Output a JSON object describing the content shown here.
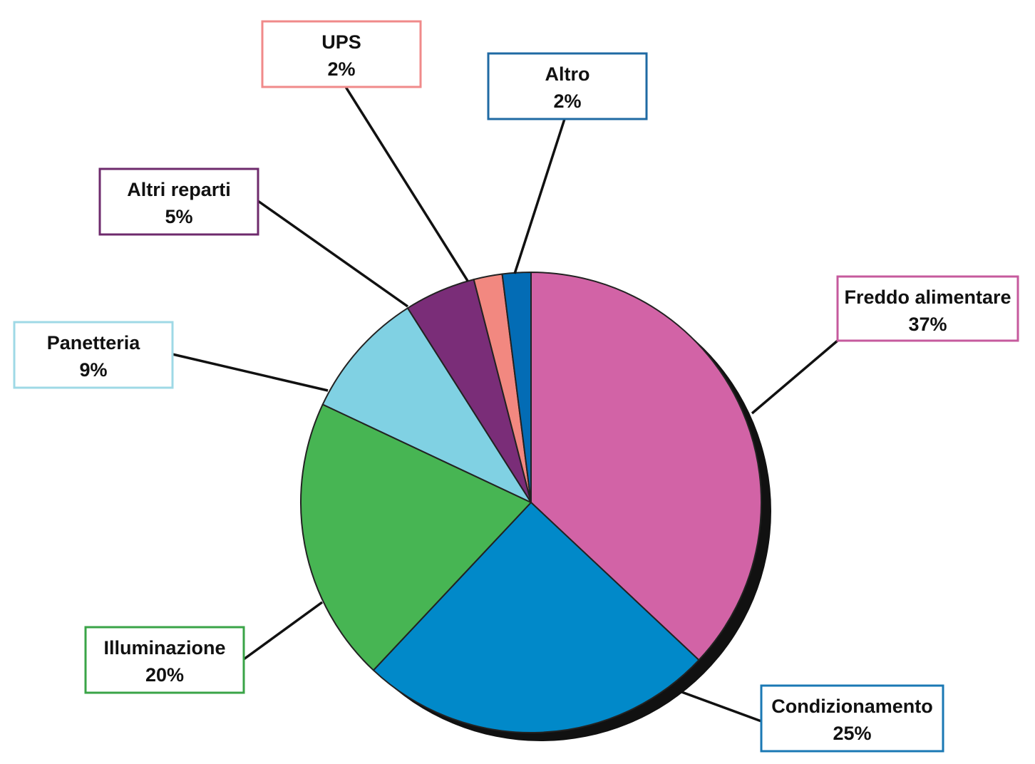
{
  "chart_data": {
    "type": "pie",
    "title": "",
    "slices": [
      {
        "label": "Freddo alimentare",
        "value": 37,
        "value_label": "37%",
        "color": "#d263a6",
        "border_color": "#c65a9d"
      },
      {
        "label": "Condizionamento",
        "value": 25,
        "value_label": "25%",
        "color": "#0189c9",
        "border_color": "#1a78b4"
      },
      {
        "label": "Illuminazione",
        "value": 20,
        "value_label": "20%",
        "color": "#47b553",
        "border_color": "#3aa447"
      },
      {
        "label": "Panetteria",
        "value": 9,
        "value_label": "9%",
        "color": "#80d1e3",
        "border_color": "#9fd9e6"
      },
      {
        "label": "Altri reparti",
        "value": 5,
        "value_label": "5%",
        "color": "#7a2d78",
        "border_color": "#6e2a6c"
      },
      {
        "label": "UPS",
        "value": 2,
        "value_label": "2%",
        "color": "#f28880",
        "border_color": "#f08a8a"
      },
      {
        "label": "Altro",
        "value": 2,
        "value_label": "2%",
        "color": "#036cb5",
        "border_color": "#1f6aa3"
      }
    ],
    "shadow": true,
    "legend": "none"
  }
}
